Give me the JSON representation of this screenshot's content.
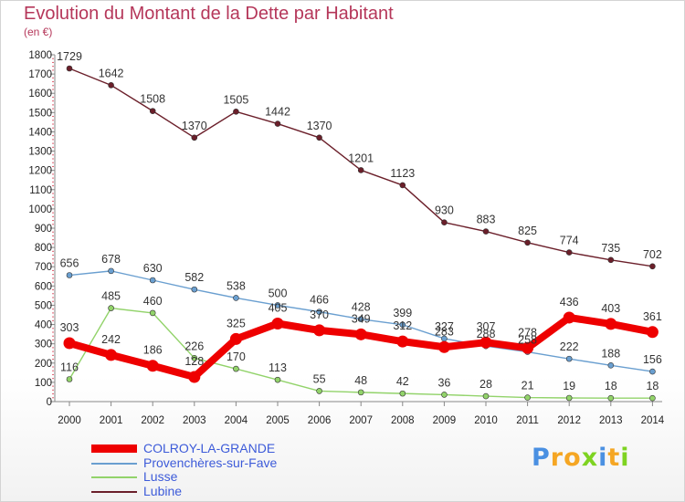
{
  "title": "Evolution du Montant de la Dette par Habitant",
  "subtitle": "(en €)",
  "logo": {
    "letters": [
      "P",
      "r",
      "o",
      "x",
      "i",
      "t",
      "i"
    ],
    "colors": [
      "#4a90e2",
      "#f5a623",
      "#f5a623",
      "#7ed321",
      "#4a90e2",
      "#f5a623",
      "#7ed321"
    ]
  },
  "chart_data": {
    "type": "line",
    "x": [
      "2000",
      "2001",
      "2002",
      "2003",
      "2004",
      "2005",
      "2006",
      "2007",
      "2008",
      "2009",
      "2010",
      "2011",
      "2012",
      "2013",
      "2014"
    ],
    "yticks": [
      "0",
      "100",
      "200",
      "300",
      "400",
      "500",
      "600",
      "700",
      "800",
      "900",
      "1000",
      "1100",
      "1200",
      "1300",
      "1400",
      "1500",
      "1600",
      "1700",
      "1800"
    ],
    "ylim": [
      0,
      1800
    ],
    "grid": false,
    "legend_position": "bottom-left",
    "series": [
      {
        "name": "Lubine",
        "color": "#6b1f2a",
        "values": [
          1729,
          1642,
          1508,
          1370,
          1505,
          1442,
          1370,
          1201,
          1123,
          930,
          883,
          825,
          774,
          735,
          702
        ],
        "labels": [
          "1729",
          "1642",
          "1508",
          "1370",
          "1505",
          "1442",
          "1370",
          "1201",
          "1123",
          "930",
          "883",
          "825",
          "774",
          "735",
          "702"
        ]
      },
      {
        "name": "Provenchères-sur-Fave",
        "color": "#6a9fd0",
        "values": [
          656,
          678,
          630,
          582,
          538,
          500,
          466,
          428,
          399,
          327,
          288,
          258,
          222,
          188,
          156
        ],
        "labels": [
          "656",
          "678",
          "630",
          "582",
          "538",
          "500",
          "466",
          "428",
          "399",
          "327",
          "288",
          "258",
          "222",
          "188",
          "156"
        ]
      },
      {
        "name": "Lusse",
        "color": "#92d36a",
        "values": [
          116,
          485,
          460,
          226,
          170,
          113,
          55,
          48,
          42,
          36,
          28,
          21,
          19,
          18,
          18
        ],
        "labels": [
          "116",
          "485",
          "460",
          "226",
          "170",
          "113",
          "55",
          "48",
          "42",
          "36",
          "28",
          "21",
          "19",
          "18",
          "18"
        ]
      },
      {
        "name": "COLROY-LA-GRANDE",
        "color": "#ee0000",
        "values": [
          303,
          242,
          186,
          128,
          325,
          405,
          370,
          349,
          312,
          283,
          307,
          278,
          436,
          403,
          361
        ],
        "labels": [
          "303",
          "242",
          "186",
          "128",
          "325",
          "405",
          "370",
          "349",
          "312",
          "283",
          "307",
          "278",
          "436",
          "403",
          "361"
        ]
      }
    ]
  }
}
